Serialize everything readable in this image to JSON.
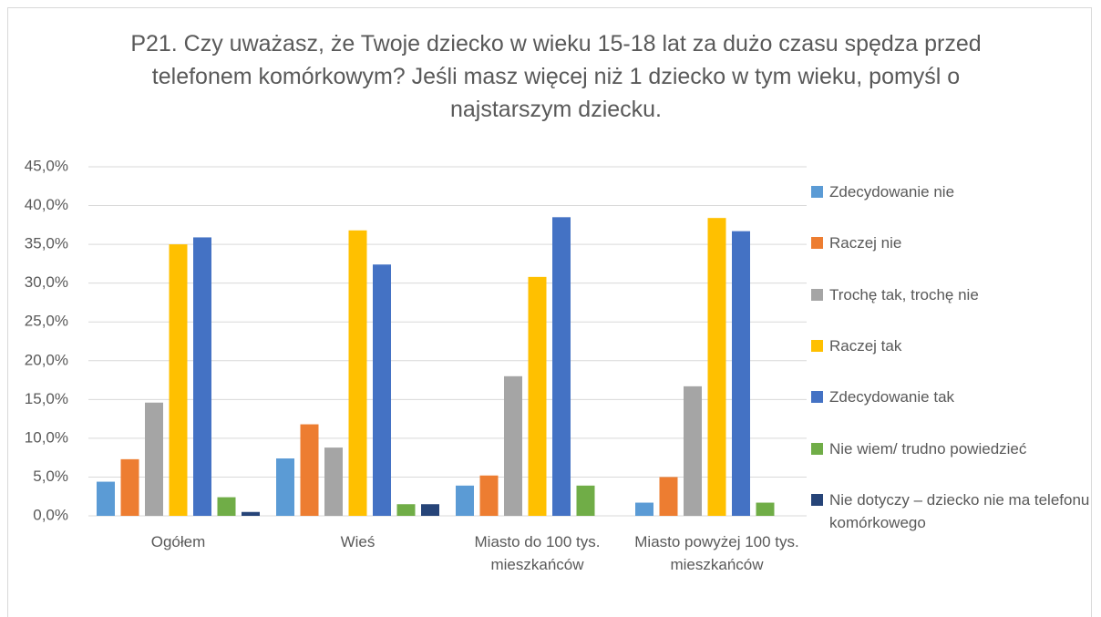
{
  "chart_data": {
    "type": "bar",
    "title": "P21. Czy uważasz, że Twoje dziecko w wieku 15-18 lat za dużo czasu spędza przed telefonem komórkowym? Jeśli masz więcej niż 1 dziecko w tym wieku, pomyśl o najstarszym dziecku.",
    "categories": [
      "Ogółem",
      "Wieś",
      "Miasto do 100 tys. mieszkańców",
      "Miasto powyżej 100 tys. mieszkańców"
    ],
    "series": [
      {
        "name": "Zdecydowanie nie",
        "color": "#5b9bd5",
        "values": [
          4.4,
          7.4,
          3.9,
          1.7
        ]
      },
      {
        "name": "Raczej nie",
        "color": "#ed7d31",
        "values": [
          7.3,
          11.8,
          5.2,
          5.0
        ]
      },
      {
        "name": "Trochę tak, trochę nie",
        "color": "#a5a5a5",
        "values": [
          14.6,
          8.8,
          18.0,
          16.7
        ]
      },
      {
        "name": "Raczej tak",
        "color": "#ffc000",
        "values": [
          35.0,
          36.8,
          30.8,
          38.4
        ]
      },
      {
        "name": "Zdecydowanie tak",
        "color": "#4472c4",
        "values": [
          35.9,
          32.4,
          38.5,
          36.7
        ]
      },
      {
        "name": "Nie wiem/ trudno powiedzieć",
        "color": "#70ad47",
        "values": [
          2.4,
          1.5,
          3.9,
          1.7
        ]
      },
      {
        "name": "Nie dotyczy – dziecko nie ma telefonu komórkowego",
        "color": "#264478",
        "values": [
          0.5,
          1.5,
          0,
          0
        ]
      }
    ],
    "ylim": [
      0,
      45
    ],
    "yticks": [
      {
        "value": 0,
        "label": "0,0%"
      },
      {
        "value": 5,
        "label": "5,0%"
      },
      {
        "value": 10,
        "label": "10,0%"
      },
      {
        "value": 15,
        "label": "15,0%"
      },
      {
        "value": 20,
        "label": "20,0%"
      },
      {
        "value": 25,
        "label": "25,0%"
      },
      {
        "value": 30,
        "label": "30,0%"
      },
      {
        "value": 35,
        "label": "35,0%"
      },
      {
        "value": 40,
        "label": "40,0%"
      },
      {
        "value": 45,
        "label": "45,0%"
      }
    ],
    "grid": true,
    "legend": "right"
  }
}
